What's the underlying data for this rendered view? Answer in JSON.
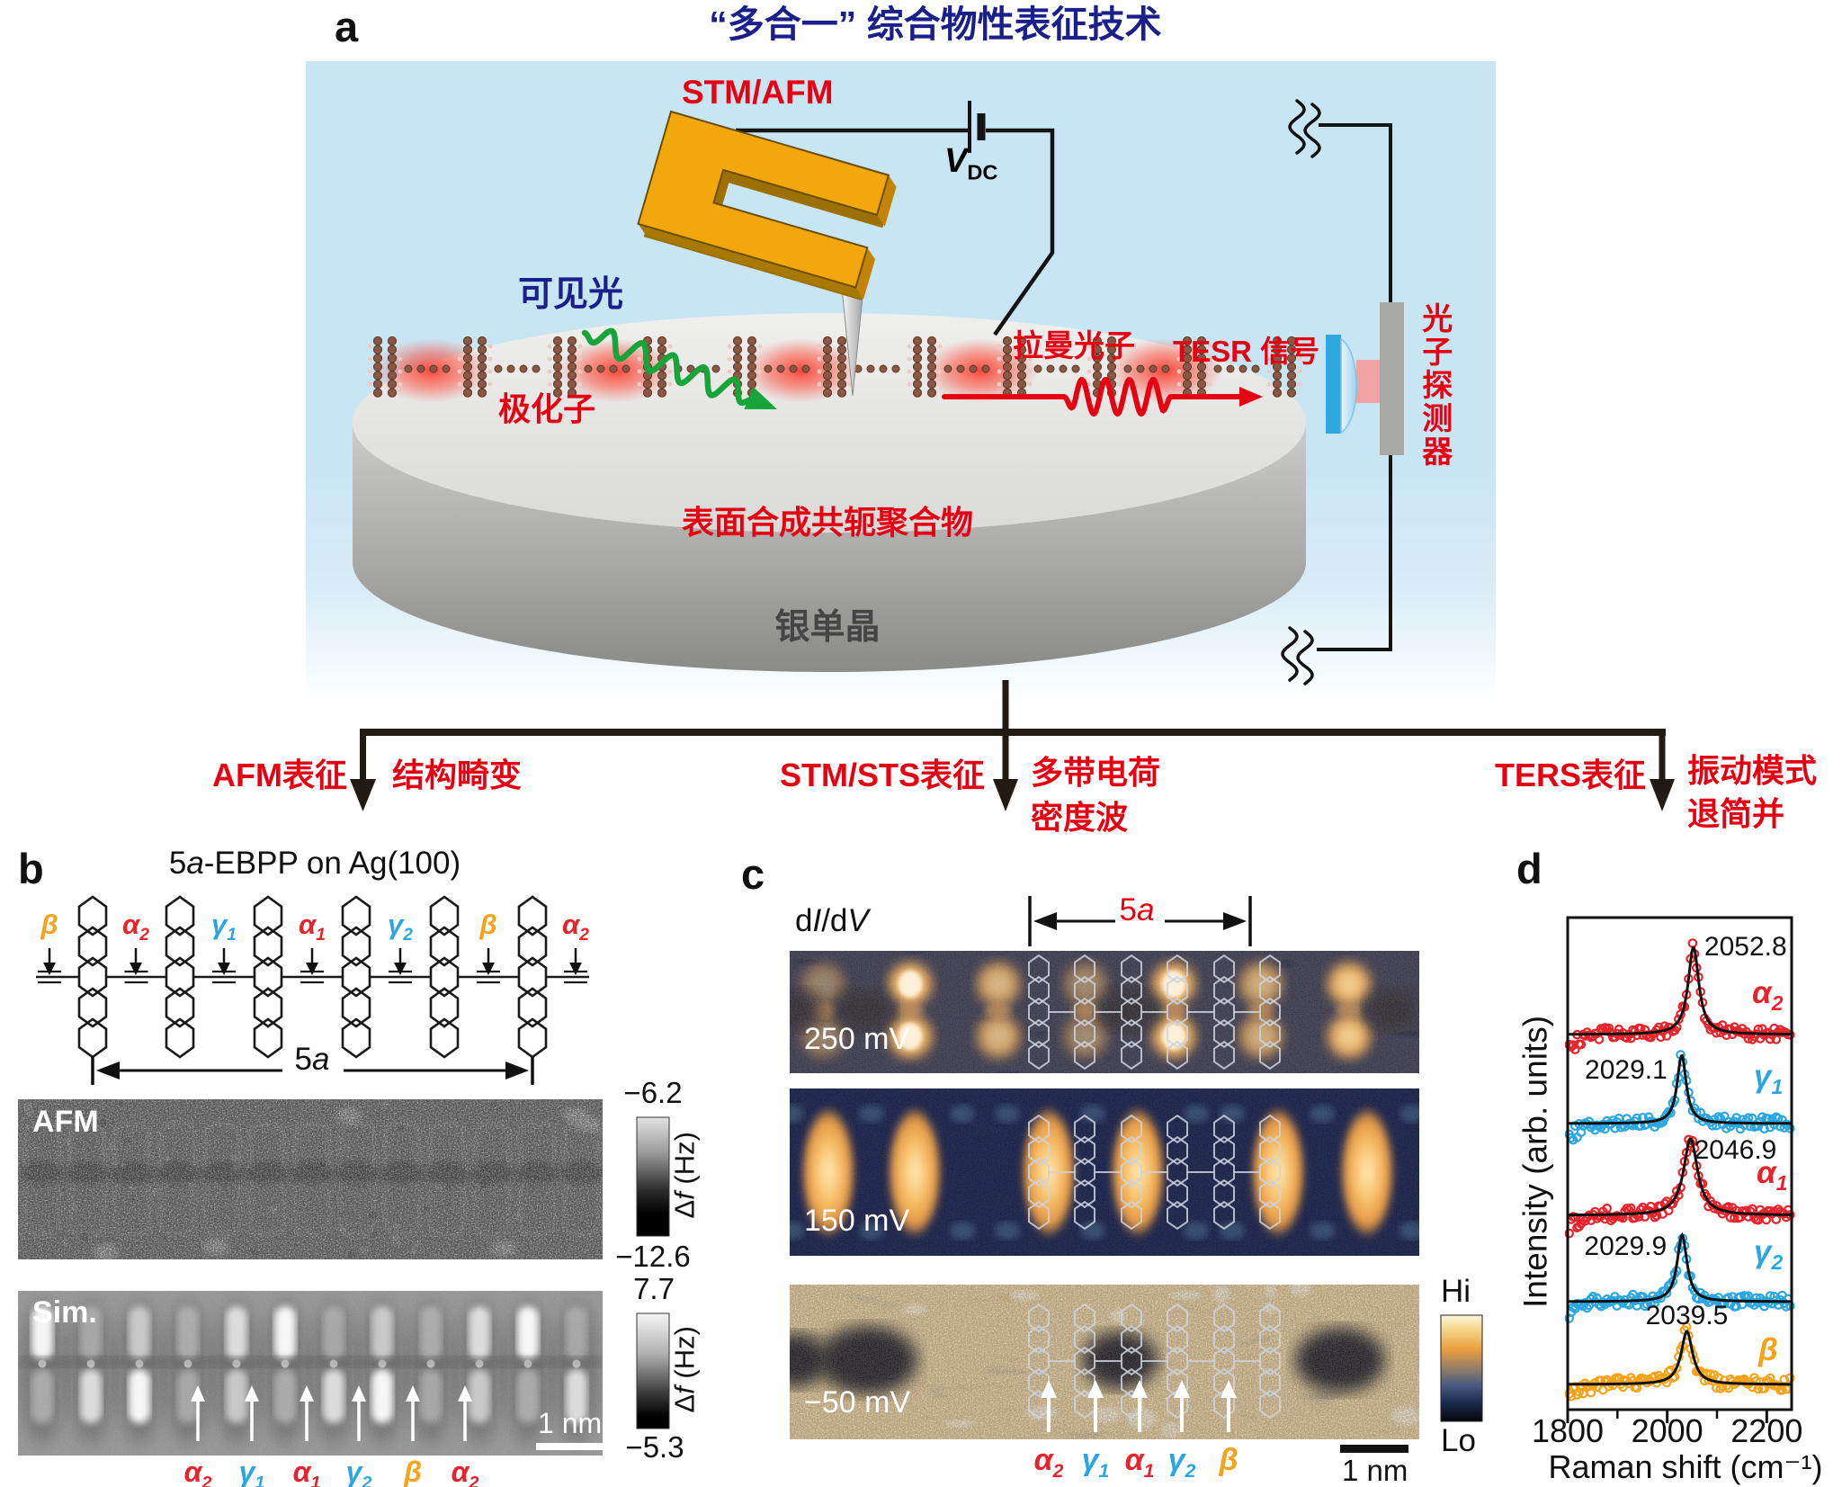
{
  "colors": {
    "red_text": "#e60012",
    "navy": "#1b1f8a",
    "alpha": "#e7232b",
    "gamma": "#2ca6e0",
    "beta": "#f5a31b",
    "panel_bg": "#c8e5f4",
    "fork": "#f2a80c",
    "green_light": "#17a53a",
    "map_hot": "#f09a42"
  },
  "panel_a": {
    "label": "a",
    "title": "“多合一” 综合物性表征技术",
    "probe_label": "STM/AFM",
    "bias_label": {
      "symbol": "V",
      "subscript": "DC"
    },
    "visible_light": "可见光",
    "polaron": "极化子",
    "raman_photon": "拉曼光子",
    "tesr_signal": "TESR 信号",
    "photon_detector": "光子探测器",
    "polymer_label": "表面合成共轭聚合物",
    "substrate_label": "银单晶"
  },
  "flow_arrows": [
    {
      "method": "AFM表征",
      "results": [
        "结构畸变"
      ]
    },
    {
      "method": "STM/STS表征",
      "results": [
        "多带电荷",
        "密度波"
      ]
    },
    {
      "method": "TERS表征",
      "results": [
        "振动模式",
        "退简并"
      ]
    }
  ],
  "panel_b": {
    "label": "b",
    "title_parts": {
      "pre": "5",
      "italic": "a",
      "post": "-EBPP on Ag(100)"
    },
    "site_labels": [
      {
        "base": "β",
        "sub": "",
        "color_key": "beta"
      },
      {
        "base": "α",
        "sub": "2",
        "color_key": "alpha"
      },
      {
        "base": "γ",
        "sub": "1",
        "color_key": "gamma"
      },
      {
        "base": "α",
        "sub": "1",
        "color_key": "alpha"
      },
      {
        "base": "γ",
        "sub": "2",
        "color_key": "gamma"
      },
      {
        "base": "β",
        "sub": "",
        "color_key": "beta"
      },
      {
        "base": "α",
        "sub": "2",
        "color_key": "alpha"
      }
    ],
    "span_label": {
      "pre": "5",
      "italic": "a"
    },
    "afm": {
      "name": "AFM",
      "colorbar_top": "−6.2",
      "colorbar_bottom": "−12.6",
      "unit_pre": "Δ",
      "unit_italic": "f",
      "unit_post": " (Hz)"
    },
    "sim": {
      "name": "Sim.",
      "colorbar_top": "7.7",
      "colorbar_bottom": "−5.3",
      "unit_pre": "Δ",
      "unit_italic": "f",
      "unit_post": " (Hz)",
      "scalebar": "1 nm",
      "arrow_labels": [
        {
          "base": "α",
          "sub": "2",
          "color_key": "alpha"
        },
        {
          "base": "γ",
          "sub": "1",
          "color_key": "gamma"
        },
        {
          "base": "α",
          "sub": "1",
          "color_key": "alpha"
        },
        {
          "base": "γ",
          "sub": "2",
          "color_key": "gamma"
        },
        {
          "base": "β",
          "sub": "",
          "color_key": "beta"
        },
        {
          "base": "α",
          "sub": "2",
          "color_key": "alpha"
        }
      ]
    }
  },
  "panel_c": {
    "label": "c",
    "signal_parts": {
      "p1": "d",
      "i1": "I",
      "p2": "/d",
      "i2": "V"
    },
    "span_label": {
      "pre": "5",
      "italic": "a"
    },
    "maps": [
      {
        "bias": "250 mV"
      },
      {
        "bias": "150 mV"
      },
      {
        "bias": "−50 mV"
      }
    ],
    "arrow_labels": [
      {
        "base": "α",
        "sub": "2",
        "color_key": "alpha"
      },
      {
        "base": "γ",
        "sub": "1",
        "color_key": "gamma"
      },
      {
        "base": "α",
        "sub": "1",
        "color_key": "alpha"
      },
      {
        "base": "γ",
        "sub": "2",
        "color_key": "gamma"
      },
      {
        "base": "β",
        "sub": "",
        "color_key": "beta"
      }
    ],
    "colorbar": {
      "top": "Hi",
      "bottom": "Lo"
    },
    "scalebar": "1 nm"
  },
  "panel_d": {
    "label": "d",
    "chart_data": {
      "type": "scatter",
      "xlabel": "Raman shift (cm⁻¹)",
      "ylabel": "Intensity (arb. units)",
      "xlim": [
        1800,
        2250
      ],
      "xticks": [
        1800,
        2000,
        2200
      ],
      "xticks_minor": [
        1900,
        2100
      ],
      "grid": false,
      "description": "Five vertically stacked TERS spectra (open-circle data + black Lorentzian fits)",
      "series": [
        {
          "name": "alpha2",
          "label_base": "α",
          "label_sub": "2",
          "color_key": "alpha",
          "peak_center": 2052.8,
          "peak_label": "2052.8",
          "rel_height": 1.0
        },
        {
          "name": "gamma1",
          "label_base": "γ",
          "label_sub": "1",
          "color_key": "gamma",
          "peak_center": 2029.1,
          "peak_label": "2029.1",
          "rel_height": 0.78
        },
        {
          "name": "alpha1",
          "label_base": "α",
          "label_sub": "1",
          "color_key": "alpha",
          "peak_center": 2046.9,
          "peak_label": "2046.9",
          "rel_height": 0.88
        },
        {
          "name": "gamma2",
          "label_base": "γ",
          "label_sub": "2",
          "color_key": "gamma",
          "peak_center": 2029.9,
          "peak_label": "2029.9",
          "rel_height": 0.76
        },
        {
          "name": "beta",
          "label_base": "β",
          "label_sub": "",
          "color_key": "beta",
          "peak_center": 2039.5,
          "peak_label": "2039.5",
          "rel_height": 0.61
        }
      ]
    }
  }
}
